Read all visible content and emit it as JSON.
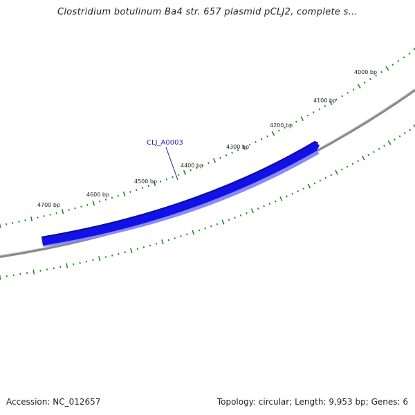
{
  "title": "Clostridium botulinum Ba4 str. 657 plasmid pCLJ2, complete s...",
  "map": {
    "tick_labels": [
      "4000 bp",
      "4100 bp",
      "4200 bp",
      "4300 bp",
      "4400 bp",
      "4500 bp",
      "4600 bp",
      "4700 bp"
    ],
    "gene_label": "CLJ_A0003",
    "colors": {
      "backbone": "#888888",
      "gene_fill": "#1010e0",
      "gene_top": "#0a0aa8",
      "gene_shadow": "#8888ff",
      "ticks": "#1a8a1a"
    }
  },
  "footer": {
    "accession": "Accession: NC_012657",
    "summary": "Topology: circular; Length: 9,953 bp; Genes: 6"
  }
}
